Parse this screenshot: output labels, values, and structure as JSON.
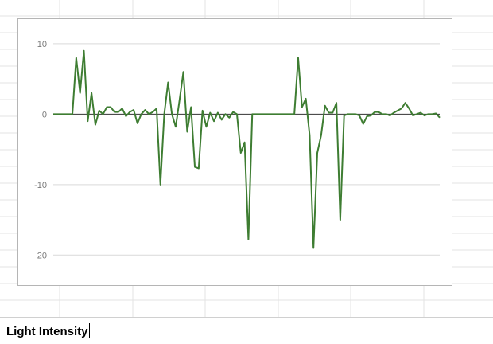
{
  "colors": {
    "line": "#3e7d32",
    "gridline": "#d9d9d9",
    "zero_line": "#333333",
    "tick_label": "#7a7a7a",
    "frame_border": "#b5b5b5",
    "sheet_grid": "#e3e3e3"
  },
  "cell_editor": {
    "text": "Light Intensity"
  },
  "chart_data": {
    "type": "line",
    "title": "",
    "xlabel": "",
    "ylabel": "",
    "ylim": [
      -22,
      11
    ],
    "yticks": [
      10,
      0,
      -10,
      -20
    ],
    "ytick_labels": [
      "10",
      "0",
      "-10",
      "-20"
    ],
    "grid": true,
    "legend": "none",
    "series": [
      {
        "values": [
          0,
          0,
          0,
          0,
          0,
          0,
          8,
          3,
          9,
          -1,
          3,
          -1.5,
          0.5,
          0,
          1,
          1,
          0.3,
          0.3,
          0.8,
          -0.3,
          0.3,
          0.6,
          -1.3,
          0,
          0.6,
          0,
          0.3,
          0.8,
          -10,
          0,
          4.5,
          0,
          -1.8,
          2,
          6,
          -2.5,
          1,
          -7.5,
          -7.7,
          0.5,
          -1.8,
          0.2,
          -1,
          0.2,
          -0.8,
          0,
          -0.5,
          0.3,
          0,
          -5.5,
          -4,
          -17.8,
          0,
          0,
          0,
          0,
          0,
          0,
          0,
          0,
          0,
          0,
          0,
          0,
          8,
          1,
          2.2,
          -3,
          -19,
          -5.5,
          -3,
          1.2,
          0.2,
          0.2,
          1.6,
          -15,
          -0.2,
          0,
          0,
          0,
          -0.2,
          -1.4,
          -0.3,
          -0.2,
          0.3,
          0.3,
          0,
          0,
          -0.2,
          0.2,
          0.5,
          0.8,
          1.6,
          0.8,
          -0.2,
          0,
          0.2,
          -0.2,
          0,
          0,
          0.1,
          -0.5
        ]
      }
    ]
  }
}
